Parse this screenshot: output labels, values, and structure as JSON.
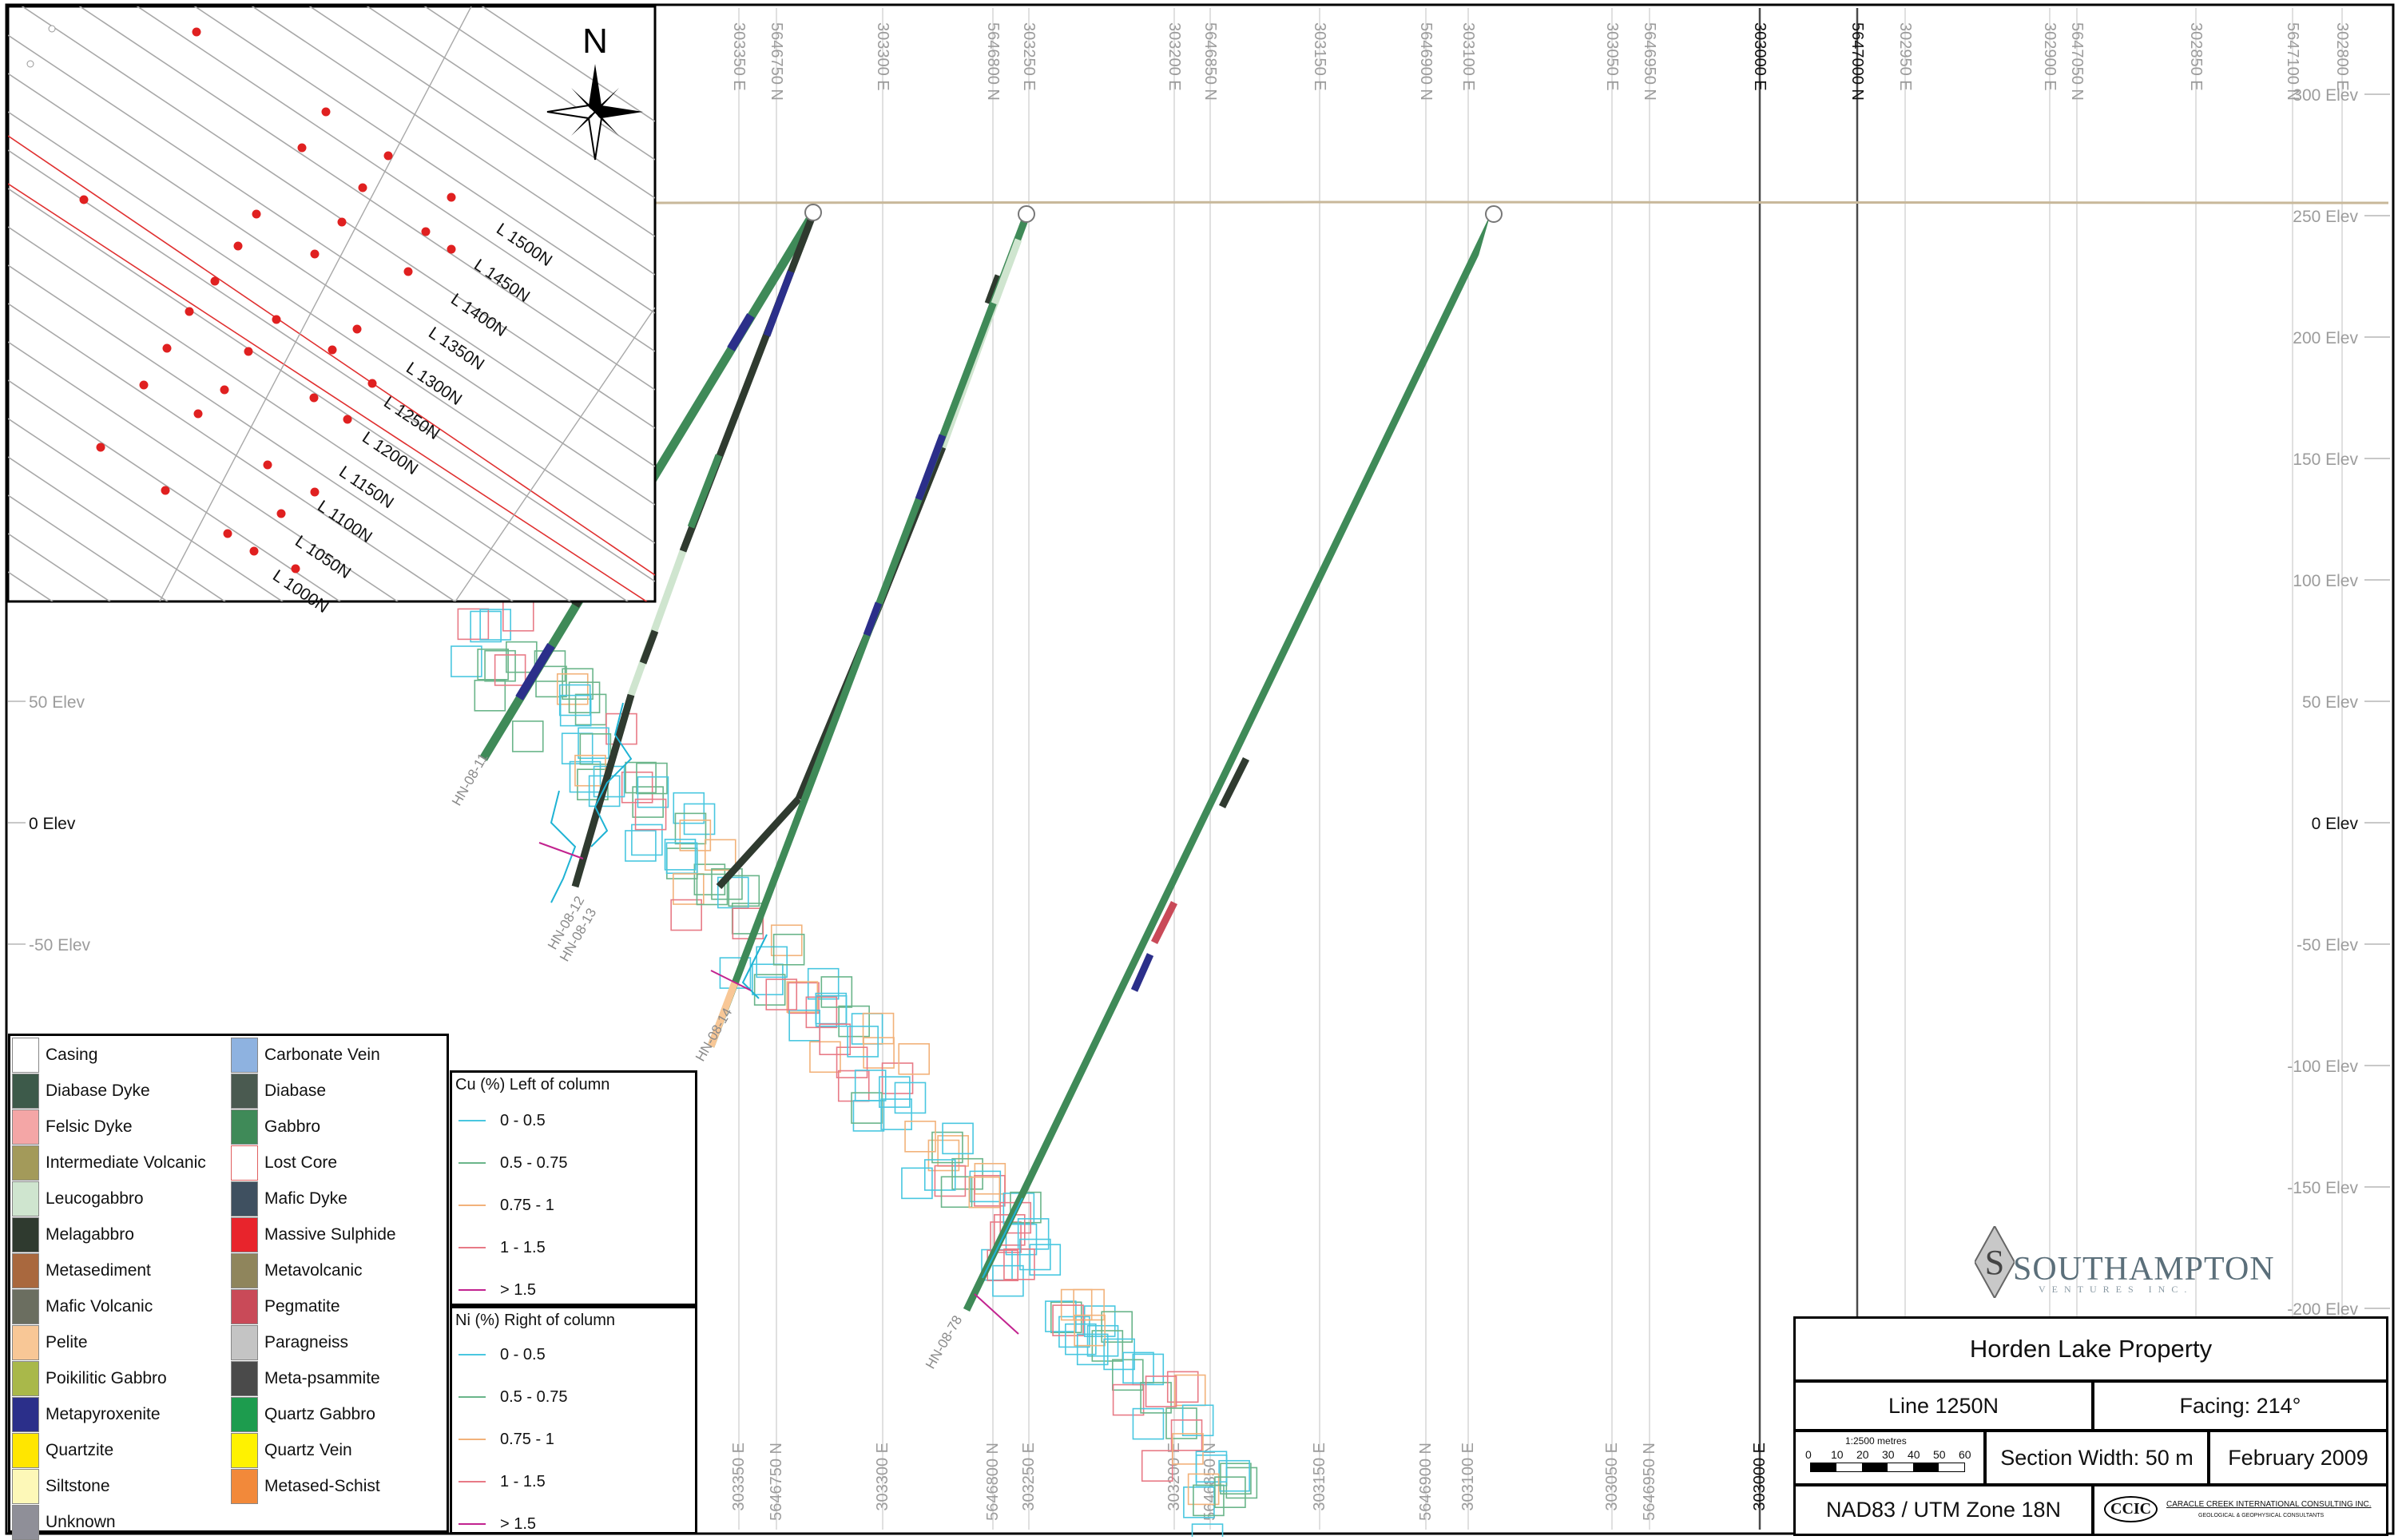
{
  "inset_map": {
    "north_label": "N",
    "line_labels": [
      "L 1500N",
      "L 1450N",
      "L 1400N",
      "L 1350N",
      "L 1300N",
      "L 1250N",
      "L 1200N",
      "L 1150N",
      "L 1100N",
      "L 1050N",
      "L 1000N"
    ]
  },
  "section": {
    "top_easting_labels": [
      "303350 E",
      "303300 E",
      "303250 E",
      "303200 E",
      "303150 E",
      "303100 E",
      "303050 E",
      "303000 E",
      "302950 E",
      "302900 E",
      "302850 E",
      "302800 E"
    ],
    "top_northing_labels": [
      "5646750 N",
      "5646800 N",
      "5646850 N",
      "5646900 N",
      "5646950 N",
      "5647000 N",
      "5647050 N",
      "5647100 N"
    ],
    "bottom_easting_labels": [
      "303350 E",
      "303300 E",
      "303250 E",
      "303200 E",
      "303150 E",
      "303100 E",
      "303050 E",
      "303000 E"
    ],
    "bottom_northing_labels": [
      "5646750 N",
      "5646800 N",
      "5646850 N",
      "5646900 N",
      "5646950 N"
    ],
    "right_elev_labels": [
      "300 Elev",
      "250 Elev",
      "200 Elev",
      "150 Elev",
      "100 Elev",
      "50 Elev",
      "0 Elev",
      "-50 Elev",
      "-100 Elev",
      "-150 Elev",
      "-200 Elev"
    ],
    "left_elev_labels": [
      "50 Elev",
      "0 Elev",
      "-50 Elev"
    ],
    "hole_labels": [
      "HN-08-11",
      "HN-08-12",
      "HN-08-13",
      "HN-08-14",
      "HN-08-78"
    ],
    "colors": {
      "grid": "#bdbdbd",
      "topography": "#c8b89a",
      "gabbro": "#3f8a58",
      "melagabbro": "#2f3a2f",
      "leucogabbro": "#cde6cd",
      "metapyroxenite": "#2b2f8a",
      "cu_cyan": "#1fb3d4",
      "ni_green": "#3aa35a"
    }
  },
  "legend": {
    "lithology": [
      {
        "label": "Casing",
        "color": "#ffffff"
      },
      {
        "label": "Diabase Dyke",
        "color": "#3d5a4a"
      },
      {
        "label": "Felsic Dyke",
        "color": "#f4a6a6"
      },
      {
        "label": "Intermediate Volcanic",
        "color": "#a39a5a"
      },
      {
        "label": "Leucogabbro",
        "color": "#cfe5cf"
      },
      {
        "label": "Melagabbro",
        "color": "#2f3a2f"
      },
      {
        "label": "Metasediment",
        "color": "#a9683e"
      },
      {
        "label": "Mafic Volcanic",
        "color": "#6b6e60"
      },
      {
        "label": "Pelite",
        "color": "#f8c796"
      },
      {
        "label": "Poikilitic Gabbro",
        "color": "#a9b84a"
      },
      {
        "label": "Metapyroxenite",
        "color": "#2b2f8a"
      },
      {
        "label": "Quartzite",
        "color": "#ffe600"
      },
      {
        "label": "Siltstone",
        "color": "#fdf8b8"
      },
      {
        "label": "Unknown",
        "color": "#8f8f98"
      },
      {
        "label": "Carbonate Vein",
        "color": "#8eb2e0"
      },
      {
        "label": "Diabase",
        "color": "#4a5a50"
      },
      {
        "label": "Gabbro",
        "color": "#3f8a58"
      },
      {
        "label": "Lost Core",
        "color": "#ffffff"
      },
      {
        "label": "Mafic Dyke",
        "color": "#3f5060"
      },
      {
        "label": "Massive Sulphide",
        "color": "#e8242c"
      },
      {
        "label": "Metavolcanic",
        "color": "#8f855c"
      },
      {
        "label": "Pegmatite",
        "color": "#c94a58"
      },
      {
        "label": "Paragneiss",
        "color": "#c4c4c4"
      },
      {
        "label": "Meta-psammite",
        "color": "#4a4a4a"
      },
      {
        "label": "Quartz Gabbro",
        "color": "#1d9c4e"
      },
      {
        "label": "Quartz Vein",
        "color": "#fff200"
      },
      {
        "label": "Metased-Schist",
        "color": "#f2893a"
      }
    ],
    "cu_title": "Cu (%) Left of column",
    "ni_title": "Ni (%) Right of column",
    "ranges": [
      "0 - 0.5",
      "0.5 - 0.75",
      "0.75 - 1",
      "1 - 1.5",
      "> 1.5"
    ],
    "range_colors": [
      "#49c7e0",
      "#6ab58a",
      "#f2b27a",
      "#e87a86",
      "#c2238f"
    ]
  },
  "logo": {
    "name": "SOUTHAMPTON",
    "sub": "VENTURES INC."
  },
  "title_block": {
    "property": "Horden Lake Property",
    "line": "Line 1250N",
    "facing": "Facing: 214°",
    "scale_label": "1:2500 metres",
    "scale_ticks": [
      "0",
      "10",
      "20",
      "30",
      "40",
      "50",
      "60"
    ],
    "section_width": "Section Width: 50 m",
    "date": "February 2009",
    "datum": "NAD83 / UTM Zone 18N",
    "company_abbr": "CCIC",
    "company": "CARACLE CREEK INTERNATIONAL CONSULTING INC.",
    "company_sub": "GEOLOGICAL & GEOPHYSICAL CONSULTANTS"
  }
}
